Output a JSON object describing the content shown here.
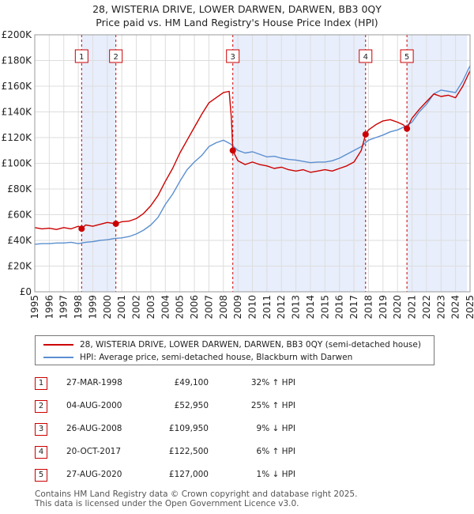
{
  "title_line1": "28, WISTERIA DRIVE, LOWER DARWEN, DARWEN, BB3 0QY",
  "title_line2": "Price paid vs. HM Land Registry's House Price Index (HPI)",
  "colors": {
    "property": "#cc0000",
    "hpi": "#5b8fd0",
    "shade": "#e8eefb",
    "grid": "#dddddd",
    "vline": "#cc0000"
  },
  "legend": {
    "property": "28, WISTERIA DRIVE, LOWER DARWEN, DARWEN, BB3 0QY (semi-detached house)",
    "hpi": "HPI: Average price, semi-detached house, Blackburn with Darwen"
  },
  "sales": [
    {
      "num": "1",
      "date": "27-MAR-1998",
      "price": "£49,100",
      "hpi": "32% ↑ HPI"
    },
    {
      "num": "2",
      "date": "04-AUG-2000",
      "price": "£52,950",
      "hpi": "25% ↑ HPI"
    },
    {
      "num": "3",
      "date": "26-AUG-2008",
      "price": "£109,950",
      "hpi": "9% ↓ HPI"
    },
    {
      "num": "4",
      "date": "20-OCT-2017",
      "price": "£122,500",
      "hpi": "6% ↑ HPI"
    },
    {
      "num": "5",
      "date": "27-AUG-2020",
      "price": "£127,000",
      "hpi": "1% ↓ HPI"
    }
  ],
  "footer_line1": "Contains HM Land Registry data © Crown copyright and database right 2025.",
  "footer_line2": "This data is licensed under the Open Government Licence v3.0.",
  "chart_data": {
    "type": "line",
    "title": "28, WISTERIA DRIVE, LOWER DARWEN, DARWEN, BB3 0QY",
    "subtitle": "Price paid vs. HM Land Registry's House Price Index (HPI)",
    "xlabel": "",
    "ylabel": "",
    "xlim": [
      1995,
      2025
    ],
    "ylim": [
      0,
      200000
    ],
    "grid": true,
    "legend_position": "below",
    "x_ticks": [
      1995,
      1996,
      1997,
      1998,
      1999,
      2000,
      2001,
      2002,
      2003,
      2004,
      2005,
      2006,
      2007,
      2008,
      2009,
      2010,
      2011,
      2012,
      2013,
      2014,
      2015,
      2016,
      2017,
      2018,
      2019,
      2020,
      2021,
      2022,
      2023,
      2024,
      2025
    ],
    "y_ticks": [
      0,
      20000,
      40000,
      60000,
      80000,
      100000,
      120000,
      140000,
      160000,
      180000,
      200000
    ],
    "y_tick_labels": [
      "£0",
      "£20K",
      "£40K",
      "£60K",
      "£80K",
      "£100K",
      "£120K",
      "£140K",
      "£160K",
      "£180K",
      "£200K"
    ],
    "series": [
      {
        "name": "28, WISTERIA DRIVE, LOWER DARWEN, DARWEN, BB3 0QY (semi-detached house)",
        "x": [
          1995,
          1995.5,
          1996,
          1996.5,
          1997,
          1997.5,
          1998,
          1998.25,
          1998.5,
          1999,
          1999.5,
          2000,
          2000.6,
          2001,
          2001.5,
          2002,
          2002.5,
          2003,
          2003.5,
          2004,
          2004.5,
          2005,
          2005.5,
          2006,
          2006.5,
          2007,
          2007.5,
          2008,
          2008.4,
          2008.55,
          2008.65,
          2009,
          2009.5,
          2010,
          2010.5,
          2011,
          2011.5,
          2012,
          2012.5,
          2013,
          2013.5,
          2014,
          2014.5,
          2015,
          2015.5,
          2016,
          2016.5,
          2017,
          2017.5,
          2017.8,
          2018,
          2018.5,
          2019,
          2019.5,
          2020,
          2020.4,
          2020.65,
          2021,
          2021.5,
          2022,
          2022.5,
          2023,
          2023.5,
          2024,
          2024.5,
          2025
        ],
        "y": [
          50000,
          49000,
          49500,
          48500,
          50000,
          49000,
          51000,
          49100,
          52000,
          51000,
          52500,
          54000,
          52950,
          54500,
          55000,
          57000,
          61000,
          67000,
          75000,
          86000,
          96000,
          108000,
          118000,
          128000,
          138000,
          147000,
          151000,
          155000,
          156000,
          135000,
          109950,
          102000,
          99000,
          101000,
          99000,
          98000,
          96000,
          97000,
          95000,
          94000,
          95000,
          93000,
          94000,
          95000,
          94000,
          96000,
          98000,
          101000,
          110000,
          122500,
          126000,
          130000,
          133000,
          134000,
          132000,
          130000,
          127000,
          135000,
          142000,
          148000,
          154000,
          152000,
          153000,
          151000,
          160000,
          172000
        ]
      },
      {
        "name": "HPI: Average price, semi-detached house, Blackburn with Darwen",
        "x": [
          1995,
          1995.5,
          1996,
          1996.5,
          1997,
          1997.5,
          1998,
          1998.5,
          1999,
          1999.5,
          2000,
          2000.5,
          2001,
          2001.5,
          2002,
          2002.5,
          2003,
          2003.5,
          2004,
          2004.5,
          2005,
          2005.5,
          2006,
          2006.5,
          2007,
          2007.5,
          2008,
          2008.5,
          2009,
          2009.5,
          2010,
          2010.5,
          2011,
          2011.5,
          2012,
          2012.5,
          2013,
          2013.5,
          2014,
          2014.5,
          2015,
          2015.5,
          2016,
          2016.5,
          2017,
          2017.5,
          2017.8,
          2018,
          2018.5,
          2019,
          2019.5,
          2020,
          2020.5,
          2021,
          2021.5,
          2022,
          2022.5,
          2023,
          2023.5,
          2024,
          2024.5,
          2025
        ],
        "y": [
          37000,
          37500,
          37500,
          38000,
          38000,
          38500,
          37500,
          38500,
          39000,
          40000,
          40500,
          41500,
          42000,
          43000,
          45000,
          48000,
          52000,
          58000,
          68000,
          76000,
          86000,
          95000,
          101000,
          106000,
          113000,
          116000,
          118000,
          115000,
          110000,
          108000,
          109000,
          107000,
          105000,
          105500,
          104000,
          103000,
          102500,
          101500,
          100500,
          101000,
          101000,
          102000,
          104000,
          107000,
          110000,
          113000,
          116000,
          118000,
          120000,
          122000,
          124500,
          126000,
          128500,
          132000,
          140000,
          146000,
          154000,
          157000,
          156000,
          155000,
          164000,
          176000
        ]
      }
    ],
    "markers": [
      {
        "label": "1",
        "x": 1998.23,
        "y": 49100
      },
      {
        "label": "2",
        "x": 2000.59,
        "y": 52950
      },
      {
        "label": "3",
        "x": 2008.65,
        "y": 109950
      },
      {
        "label": "4",
        "x": 2017.8,
        "y": 122500
      },
      {
        "label": "5",
        "x": 2020.65,
        "y": 127000
      }
    ]
  }
}
